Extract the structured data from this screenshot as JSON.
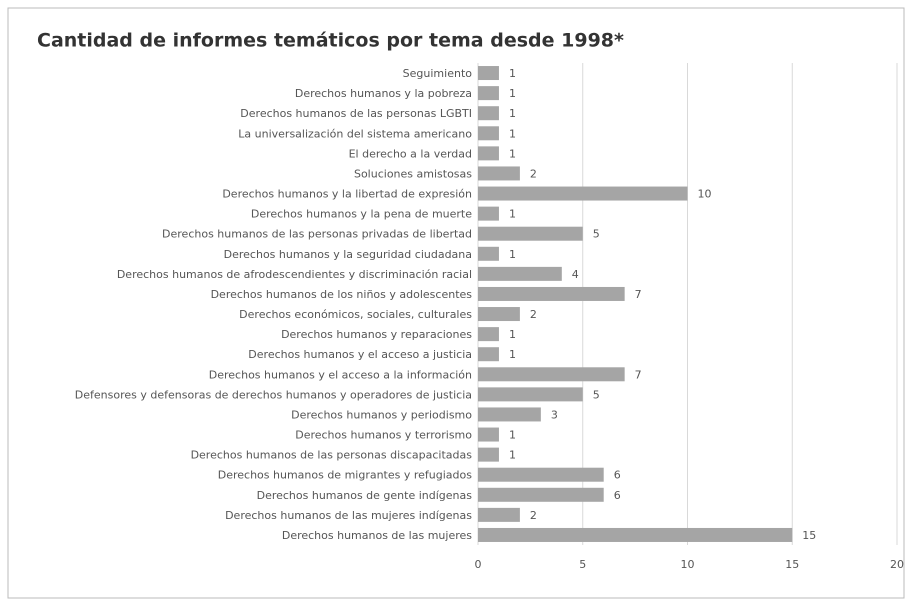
{
  "chart_data": {
    "type": "bar",
    "orientation": "horizontal",
    "title": "Cantidad de informes temáticos por tema desde 1998*",
    "categories": [
      "Seguimiento",
      "Derechos humanos y la pobreza",
      "Derechos humanos de las personas LGBTI",
      "La universalización del sistema americano",
      "El derecho a la verdad",
      "Soluciones amistosas",
      "Derechos humanos y la libertad de expresión",
      "Derechos humanos y la pena de muerte",
      "Derechos humanos de las personas privadas de libertad",
      "Derechos humanos y la seguridad ciudadana",
      "Derechos humanos de afrodescendientes y discriminación racial",
      "Derechos humanos de los niños y adolescentes",
      "Derechos económicos, sociales, culturales",
      "Derechos humanos y reparaciones",
      "Derechos humanos y el acceso a justicia",
      "Derechos humanos y el acceso a la información",
      "Defensores y defensoras de derechos humanos y operadores de justicia",
      "Derechos humanos y periodismo",
      "Derechos humanos y terrorismo",
      "Derechos humanos de las personas discapacitadas",
      "Derechos humanos de migrantes y refugiados",
      "Derechos humanos de gente indígenas",
      "Derechos humanos de las mujeres indígenas",
      "Derechos humanos de las mujeres"
    ],
    "values": [
      1,
      1,
      1,
      1,
      1,
      2,
      10,
      1,
      5,
      1,
      4,
      7,
      2,
      1,
      1,
      7,
      5,
      3,
      1,
      1,
      6,
      6,
      2,
      15
    ],
    "color": "#a5a5a5",
    "xlim": [
      0,
      20
    ],
    "xticks": [
      0,
      5,
      10,
      15,
      20
    ],
    "grid": true
  }
}
